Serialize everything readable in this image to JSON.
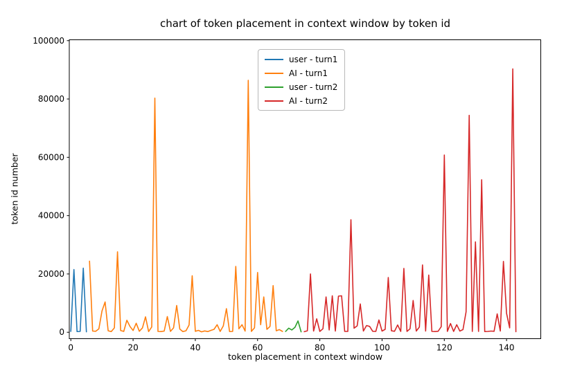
{
  "title": "chart of token placement in context window by token id",
  "legend": {
    "items": [
      {
        "label": "user - turn1",
        "color": "#1f77b4"
      },
      {
        "label": "AI - turn1",
        "color": "#ff7f0e"
      },
      {
        "label": "user - turn2",
        "color": "#2ca02c"
      },
      {
        "label": "AI - turn2",
        "color": "#d62728"
      }
    ]
  },
  "chart_data": {
    "type": "line",
    "title": "chart of token placement in context window by token id",
    "xlabel": "token placement in context window",
    "ylabel": "token id number",
    "x_ticks": [
      0,
      20,
      40,
      60,
      80,
      100,
      120,
      140
    ],
    "y_ticks": [
      0,
      20000,
      40000,
      60000,
      80000,
      100000
    ],
    "xlim": [
      -0.5,
      151
    ],
    "ylim": [
      -2200,
      100300
    ],
    "grid": false,
    "legend_position": "upper center",
    "series": [
      {
        "name": "user - turn1",
        "color": "#1f77b4",
        "x_start": 0,
        "values": [
          300,
          21500,
          250,
          300,
          22000,
          150
        ]
      },
      {
        "name": "AI - turn1",
        "color": "#ff7f0e",
        "x_start": 6,
        "values": [
          24400,
          400,
          350,
          1200,
          7300,
          10400,
          500,
          250,
          1500,
          27600,
          600,
          300,
          4100,
          2000,
          600,
          3100,
          350,
          1500,
          5300,
          250,
          1800,
          80300,
          300,
          250,
          400,
          5400,
          300,
          1500,
          9200,
          1100,
          250,
          500,
          2500,
          19400,
          350,
          650,
          150,
          450,
          250,
          650,
          1000,
          2600,
          300,
          2200,
          8100,
          250,
          300,
          22600,
          1200,
          2600,
          400,
          86400,
          300,
          1500,
          20500,
          2600,
          12100,
          1000,
          2000,
          16000,
          500,
          900,
          300
        ]
      },
      {
        "name": "user - turn2",
        "color": "#2ca02c",
        "x_start": 69,
        "values": [
          300,
          1400,
          800,
          1700,
          3900,
          150
        ]
      },
      {
        "name": "AI - turn2",
        "color": "#d62728",
        "x_start": 75,
        "values": [
          200,
          500,
          20000,
          400,
          4600,
          300,
          1200,
          12100,
          800,
          12500,
          400,
          12400,
          12500,
          300,
          300,
          38600,
          1400,
          2200,
          9700,
          400,
          2300,
          2000,
          350,
          300,
          4200,
          400,
          1000,
          18800,
          500,
          350,
          2500,
          300,
          21900,
          300,
          1200,
          10900,
          400,
          1800,
          23100,
          400,
          19600,
          300,
          250,
          350,
          1900,
          60800,
          300,
          3000,
          300,
          2600,
          400,
          900,
          7000,
          74400,
          300,
          31000,
          300,
          52300,
          250,
          300,
          400,
          350,
          6300,
          400,
          24300,
          6500,
          1500,
          90300,
          200
        ]
      }
    ]
  }
}
